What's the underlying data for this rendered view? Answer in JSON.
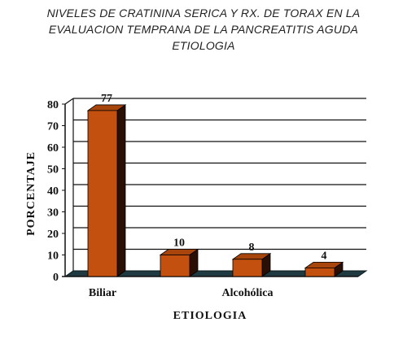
{
  "title_lines": [
    "NIVELES DE CRATININA SERICA Y RX. DE TORAX EN LA",
    "EVALUACION TEMPRANA DE LA PANCREATITIS AGUDA",
    "ETIOLOGIA"
  ],
  "chart_data": {
    "type": "bar",
    "categories": [
      "Biliar",
      "",
      "Alcohólica",
      ""
    ],
    "values": [
      77,
      10,
      8,
      4
    ],
    "data_labels": [
      "77",
      "10",
      "8",
      "4"
    ],
    "xlabel": "ETIOLOGIA",
    "ylabel": "PORCENTAJE",
    "ylim": [
      0,
      80
    ],
    "yticks": [
      0,
      10,
      20,
      30,
      40,
      50,
      60,
      70,
      80
    ],
    "grid": true,
    "legend": "none",
    "colors": {
      "bar_front": "#c4500f",
      "bar_side": "#2a0f04",
      "bar_top": "#a8450c",
      "floor": "#1f3a40",
      "grid": "#111111"
    }
  }
}
